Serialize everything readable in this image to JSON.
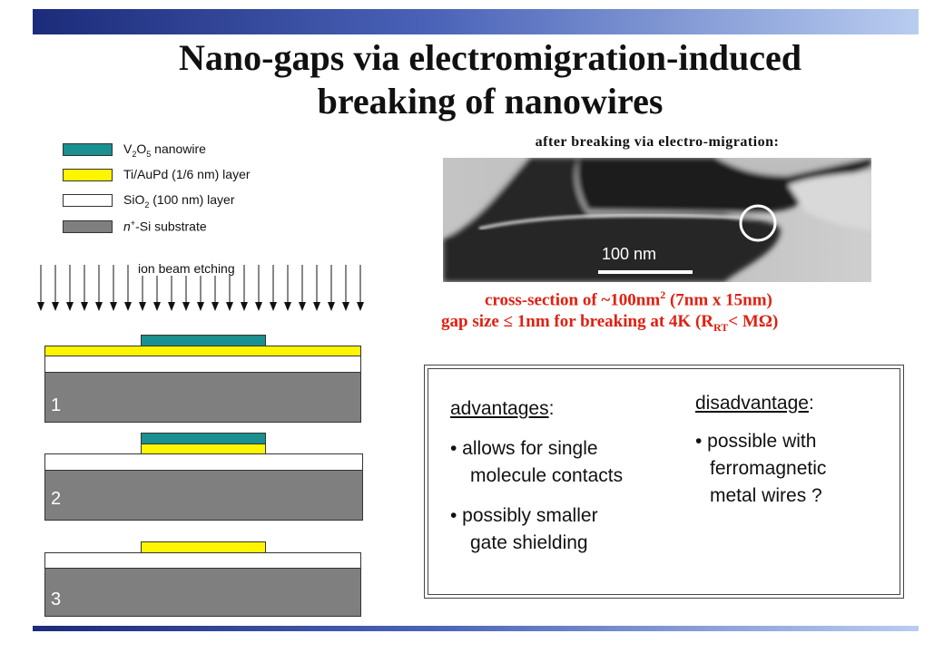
{
  "colors": {
    "accent_bar_dark": "#1c2b7a",
    "accent_bar_light": "#b9cdf0",
    "nanowire": "#1a9090",
    "metal_layer": "#fff500",
    "oxide_layer": "#ffffff",
    "substrate": "#7f7f7f",
    "highlight_text": "#e02010"
  },
  "title": {
    "line1": "Nano-gaps via electromigration-induced",
    "line2": "breaking of nanowires"
  },
  "legend": {
    "nanowire": {
      "pre": "V",
      "sub1": "2",
      "mid": "O",
      "sub2": "5",
      "post": " nanowire"
    },
    "metal": "Ti/AuPd (1/6 nm) layer",
    "oxide": {
      "pre": "SiO",
      "sub": "2",
      "post": " (100 nm) layer"
    },
    "substrate": {
      "pre": "n",
      "sup": "+",
      "post": "-Si substrate"
    }
  },
  "diagram": {
    "ion_beam_label": "ion beam etching",
    "steps": [
      "1",
      "2",
      "3"
    ]
  },
  "sem": {
    "caption": "after breaking via electro-migration:",
    "scale_label": "100 nm"
  },
  "results": {
    "cross_section": {
      "pre": "cross-section of ~100nm",
      "sup": "2",
      "post": " (7nm x 15nm)"
    },
    "gap_size": {
      "pre": "gap size ≤ 1nm for breaking at 4K (R",
      "sub": "RT",
      "post": "< MΩ)"
    }
  },
  "advantages": {
    "heading": "advantages",
    "colon": ":",
    "items": [
      {
        "line1": "• allows for single",
        "line2": "molecule contacts"
      },
      {
        "line1": "• possibly smaller",
        "line2": "gate shielding"
      }
    ]
  },
  "disadvantages": {
    "heading": "disadvantage",
    "colon": ":",
    "items": [
      {
        "line1": "• possible with",
        "line2": "ferromagnetic",
        "line3": "metal wires ?"
      }
    ]
  }
}
